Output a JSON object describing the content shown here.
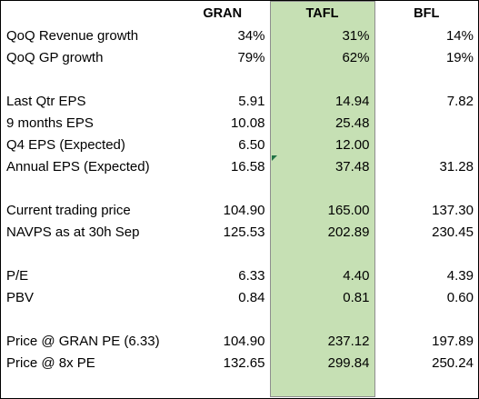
{
  "header": {
    "label_col": "",
    "gran": "GRAN",
    "tafl": "TAFL",
    "bfl": "BFL"
  },
  "rows": [
    {
      "label": "QoQ Revenue growth",
      "gran": "34%",
      "tafl": "31%",
      "bfl": "14%"
    },
    {
      "label": "QoQ GP growth",
      "gran": "79%",
      "tafl": "62%",
      "bfl": "19%"
    },
    {
      "label": "",
      "gran": "",
      "tafl": "",
      "bfl": ""
    },
    {
      "label": "Last Qtr EPS",
      "gran": "5.91",
      "tafl": "14.94",
      "bfl": "7.82"
    },
    {
      "label": "9 months EPS",
      "gran": "10.08",
      "tafl": "25.48",
      "bfl": ""
    },
    {
      "label": "Q4 EPS (Expected)",
      "gran": "6.50",
      "tafl": "12.00",
      "bfl": ""
    },
    {
      "label": "Annual EPS (Expected)",
      "gran": "16.58",
      "tafl": "37.48",
      "bfl": "31.28"
    },
    {
      "label": "",
      "gran": "",
      "tafl": "",
      "bfl": ""
    },
    {
      "label": "Current trading price",
      "gran": "104.90",
      "tafl": "165.00",
      "bfl": "137.30"
    },
    {
      "label": "NAVPS as at 30h Sep",
      "gran": "125.53",
      "tafl": "202.89",
      "bfl": "230.45"
    },
    {
      "label": "",
      "gran": "",
      "tafl": "",
      "bfl": ""
    },
    {
      "label": "P/E",
      "gran": "6.33",
      "tafl": "4.40",
      "bfl": "4.39"
    },
    {
      "label": "PBV",
      "gran": "0.84",
      "tafl": "0.81",
      "bfl": "0.60"
    },
    {
      "label": "",
      "gran": "",
      "tafl": "",
      "bfl": ""
    },
    {
      "label": "Price @ GRAN PE (6.33)",
      "gran": "104.90",
      "tafl": "237.12",
      "bfl": "197.89"
    },
    {
      "label": "Price @ 8x PE",
      "gran": "132.65",
      "tafl": "299.84",
      "bfl": "250.24"
    },
    {
      "label": "",
      "gran": "",
      "tafl": "",
      "bfl": ""
    }
  ],
  "colors": {
    "highlight_column": "#c6e0b4",
    "comment_marker": "#217346"
  }
}
